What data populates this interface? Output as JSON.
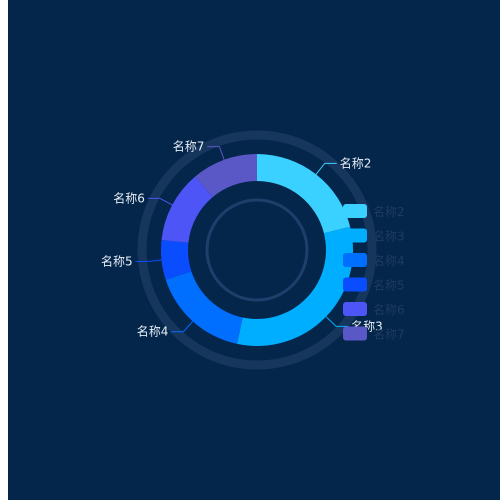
{
  "chart_data": {
    "type": "pie",
    "variant": "donut",
    "title": "",
    "categories": [
      "名称2",
      "名称3",
      "名称4",
      "名称5",
      "名称6",
      "名称7"
    ],
    "values": [
      19,
      29,
      15,
      6,
      11,
      10
    ],
    "colors": [
      "#3ad0ff",
      "#00aeff",
      "#006eff",
      "#0a4dff",
      "#4e55f7",
      "#5a57c7"
    ],
    "legend": {
      "position": "right",
      "items": [
        "名称2",
        "名称3",
        "名称4",
        "名称5",
        "名称6",
        "名称7"
      ]
    },
    "labels_shown": true
  },
  "theme": {
    "background": "#04264b",
    "outer_ring": "#17365e",
    "inner_ring": "#1d3f6b"
  }
}
